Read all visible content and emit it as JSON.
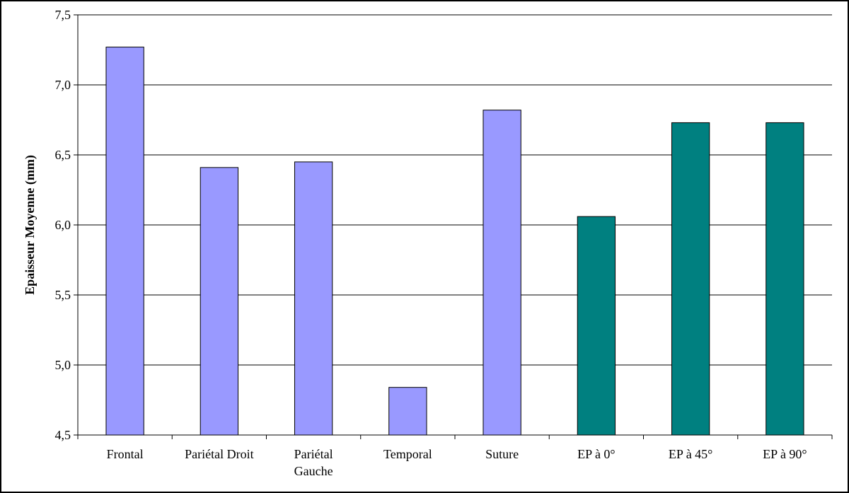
{
  "chart_data": {
    "type": "bar",
    "title": "",
    "xlabel": "",
    "ylabel": "Epaisseur Moyenne (mm)",
    "ylim": [
      4.5,
      7.5
    ],
    "yticks": [
      "4,5",
      "5,0",
      "5,5",
      "6,0",
      "6,5",
      "7,0",
      "7,5"
    ],
    "ytick_values": [
      4.5,
      5.0,
      5.5,
      6.0,
      6.5,
      7.0,
      7.5
    ],
    "grid": true,
    "categories": [
      [
        "Frontal"
      ],
      [
        "Pariétal Droit"
      ],
      [
        "Pariétal",
        "Gauche"
      ],
      [
        "Temporal"
      ],
      [
        "Suture"
      ],
      [
        "EP à 0°"
      ],
      [
        "EP à 45°"
      ],
      [
        "EP à 90°"
      ]
    ],
    "values": [
      7.27,
      6.41,
      6.45,
      4.84,
      6.82,
      6.06,
      6.73,
      6.73
    ],
    "colors": [
      "#9999ff",
      "#9999ff",
      "#9999ff",
      "#9999ff",
      "#9999ff",
      "#008080",
      "#008080",
      "#008080"
    ]
  }
}
